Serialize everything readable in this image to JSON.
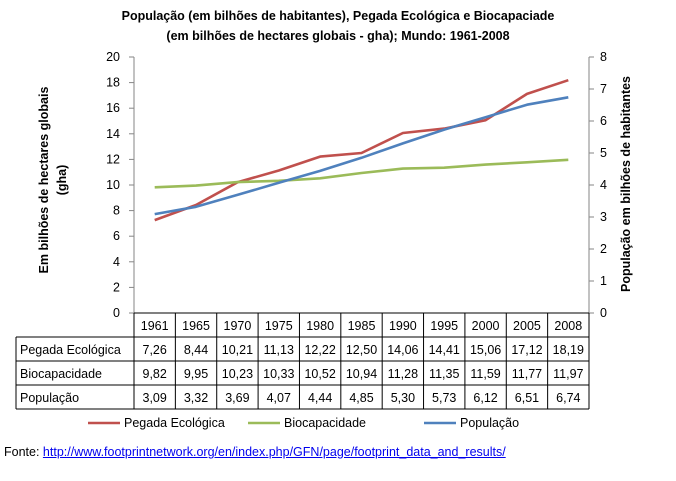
{
  "chart_data": {
    "type": "line",
    "title_line1": "População (em bilhões de habitantes), Pegada Ecológica e Biocapaciade",
    "title_line2": "(em bilhões de hectares globais - gha); Mundo: 1961-2008",
    "ylabel_left_line1": "Em bilhões de  hectares globais",
    "ylabel_left_line2": "(gha)",
    "ylabel_right": "População em bilhões de habitantes",
    "ylim_left": [
      0,
      20
    ],
    "yticks_left": [
      "0",
      "2",
      "4",
      "6",
      "8",
      "10",
      "12",
      "14",
      "16",
      "18",
      "20"
    ],
    "ylim_right": [
      0,
      8
    ],
    "yticks_right": [
      "0",
      "1",
      "2",
      "3",
      "4",
      "5",
      "6",
      "7",
      "8"
    ],
    "categories": [
      "1961",
      "1965",
      "1970",
      "1975",
      "1980",
      "1985",
      "1990",
      "1995",
      "2000",
      "2005",
      "2008"
    ],
    "series": [
      {
        "name": "Pegada Ecológica",
        "axis": "left",
        "color": "#C0504D",
        "values": [
          7.26,
          8.44,
          10.21,
          11.13,
          12.22,
          12.5,
          14.06,
          14.41,
          15.06,
          17.12,
          18.19
        ],
        "labels": [
          "7,26",
          "8,44",
          "10,21",
          "11,13",
          "12,22",
          "12,50",
          "14,06",
          "14,41",
          "15,06",
          "17,12",
          "18,19"
        ]
      },
      {
        "name": "Biocapacidade",
        "axis": "left",
        "color": "#9BBB59",
        "values": [
          9.82,
          9.95,
          10.23,
          10.33,
          10.52,
          10.94,
          11.28,
          11.35,
          11.59,
          11.77,
          11.97
        ],
        "labels": [
          "9,82",
          "9,95",
          "10,23",
          "10,33",
          "10,52",
          "10,94",
          "11,28",
          "11,35",
          "11,59",
          "11,77",
          "11,97"
        ]
      },
      {
        "name": "População",
        "axis": "right",
        "color": "#4F81BD",
        "values": [
          3.09,
          3.32,
          3.69,
          4.07,
          4.44,
          4.85,
          5.3,
          5.73,
          6.12,
          6.51,
          6.74
        ],
        "labels": [
          "3,09",
          "3,32",
          "3,69",
          "4,07",
          "4,44",
          "4,85",
          "5,30",
          "5,73",
          "6,12",
          "6,51",
          "6,74"
        ]
      }
    ]
  },
  "source": {
    "prefix": "Fonte: ",
    "link": "http://www.footprintnetwork.org/en/index.php/GFN/page/footprint_data_and_results/"
  }
}
